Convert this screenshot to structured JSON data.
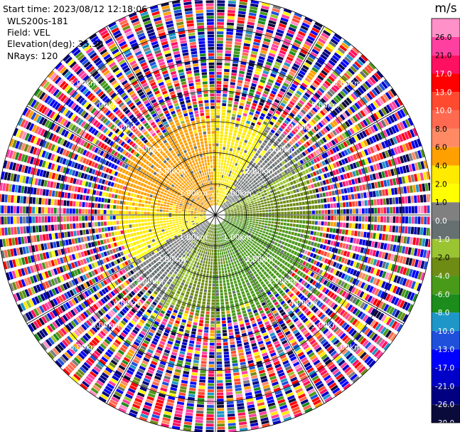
{
  "info": {
    "start_time": "Start time: 2023/08/12 12:18:06",
    "station": "WLS200s-181",
    "field": "Field: VEL",
    "elevation": "Elevation(deg): 35.30",
    "nrays": "NRays: 120"
  },
  "chart_data": {
    "type": "heatmap",
    "projection": "polar",
    "field": "VEL",
    "nrays": 120,
    "elevation_deg": 35.3,
    "max_range_km": 7.0,
    "range_rings_km": [
      1,
      2,
      3,
      4,
      5,
      6,
      7
    ],
    "range_ring_labels": [
      "1.00km",
      "2.00km",
      "3.00km",
      "4.00km",
      "5.00km",
      "6.00km"
    ],
    "colorbar": {
      "unit": "m/s",
      "bounds": [
        -30.0,
        -26.0,
        -21.0,
        -17.0,
        -13.0,
        -10.0,
        -8.0,
        -6.0,
        -4.0,
        -2.0,
        -1.0,
        0.0,
        1.0,
        2.0,
        4.0,
        6.0,
        8.0,
        10.0,
        13.0,
        17.0,
        21.0,
        26.0
      ],
      "tick_labels": [
        "-30.0",
        "-26.0",
        "-21.0",
        "-17.0",
        "-13.0",
        "-10.0",
        "-8.0",
        "-6.0",
        "-4.0",
        "-2.0",
        "-1.0",
        "0.0",
        "1.0",
        "2.0",
        "4.0",
        "6.0",
        "8.0",
        "10.0",
        "13.0",
        "17.0",
        "21.0",
        "26.0"
      ],
      "colors": [
        "#0b0b3b",
        "#000080",
        "#0000c8",
        "#0000ff",
        "#1e50dc",
        "#1e96c8",
        "#1c8c1c",
        "#4a9a1a",
        "#6e8c14",
        "#9ac432",
        "#667070",
        "#808080",
        "#ffff00",
        "#ffea00",
        "#ffa000",
        "#ff8a64",
        "#ff6a50",
        "#ff4a30",
        "#ff0000",
        "#ff1060",
        "#ff40a0",
        "#ff90c8"
      ]
    }
  }
}
